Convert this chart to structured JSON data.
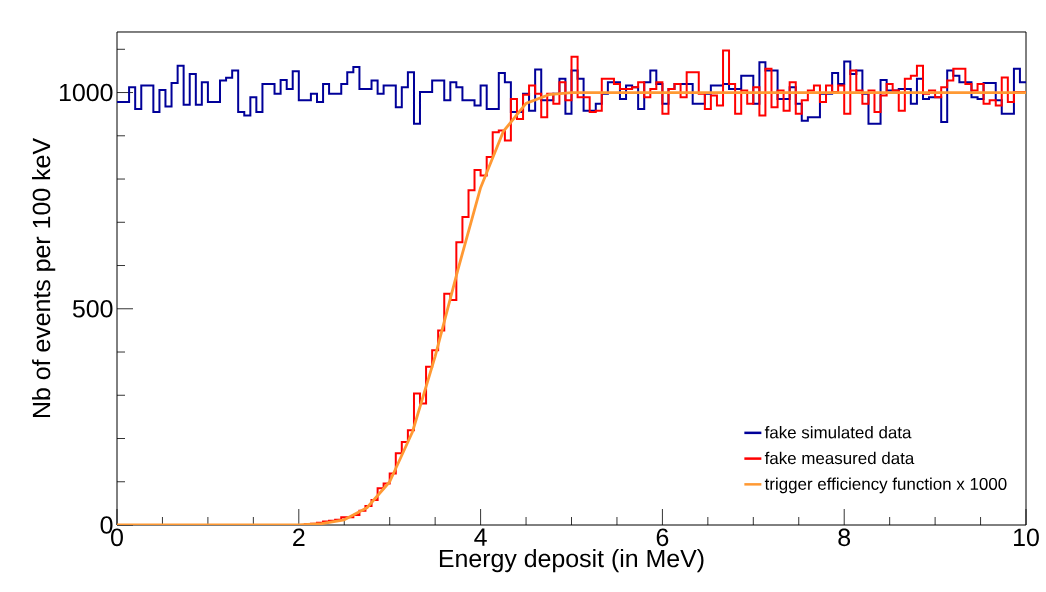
{
  "chart_data": {
    "type": "histogram",
    "xlabel": "Energy deposit (in MeV)",
    "ylabel": "Nb of events per 100 keV",
    "bins": [
      0,
      0.067,
      0.133,
      0.2,
      0.267,
      0.333,
      0.4,
      0.467,
      0.533,
      0.6,
      0.667,
      0.733,
      0.8,
      0.867,
      0.933,
      1,
      1.067,
      1.133,
      1.2,
      1.267,
      1.333,
      1.4,
      1.467,
      1.533,
      1.6,
      1.667,
      1.733,
      1.8,
      1.867,
      1.933,
      2,
      2.067,
      2.133,
      2.2,
      2.267,
      2.333,
      2.4,
      2.467,
      2.533,
      2.6,
      2.667,
      2.733,
      2.8,
      2.867,
      2.933,
      3,
      3.067,
      3.133,
      3.2,
      3.267,
      3.333,
      3.4,
      3.467,
      3.533,
      3.6,
      3.667,
      3.733,
      3.8,
      3.867,
      3.933,
      4,
      4.067,
      4.133,
      4.2,
      4.267,
      4.333,
      4.4,
      4.467,
      4.533,
      4.6,
      4.667,
      4.733,
      4.8,
      4.867,
      4.933,
      5,
      5.067,
      5.133,
      5.2,
      5.267,
      5.333,
      5.4,
      5.467,
      5.533,
      5.6,
      5.667,
      5.733,
      5.8,
      5.867,
      5.933,
      6,
      6.067,
      6.133,
      6.2,
      6.267,
      6.333,
      6.4,
      6.467,
      6.533,
      6.6,
      6.667,
      6.733,
      6.8,
      6.867,
      6.933,
      7,
      7.067,
      7.133,
      7.2,
      7.267,
      7.333,
      7.4,
      7.467,
      7.533,
      7.6,
      7.667,
      7.733,
      7.8,
      7.867,
      7.933,
      8,
      8.067,
      8.133,
      8.2,
      8.267,
      8.333,
      8.4,
      8.467,
      8.533,
      8.6,
      8.667,
      8.733,
      8.8,
      8.867,
      8.933,
      9,
      9.067,
      9.133,
      9.2,
      9.267,
      9.333,
      9.4,
      9.467,
      9.533,
      9.6,
      9.667,
      9.733,
      9.8,
      9.867,
      9.933,
      10
    ],
    "series": [
      {
        "name": "fake simulated data",
        "color": "#000099",
        "values": [
          978,
          978,
          1012,
          962,
          1016,
          1016,
          955,
          1006,
          968,
          1022,
          1062,
          972,
          1043,
          972,
          1024,
          978,
          978,
          1028,
          1034,
          1051,
          955,
          947,
          989,
          955,
          1020,
          1020,
          997,
          1029,
          1008,
          1049,
          982,
          982,
          997,
          978,
          1020,
          997,
          997,
          1020,
          1047,
          1059,
          1008,
          1008,
          1028,
          997,
          1016,
          1016,
          966,
          1012,
          1047,
          928,
          1001,
          1001,
          1028,
          1028,
          982,
          1024,
          1012,
          982,
          982,
          970,
          1016,
          962,
          962,
          1045,
          1024,
          955,
          955,
          997,
          958,
          1053,
          982,
          982,
          997,
          1032,
          951,
          1051,
          1032,
          958,
          958,
          974,
          997,
          1024,
          1024,
          985,
          1016,
          1012,
          962,
          1024,
          1051,
          1020,
          974,
          1008,
          1020,
          1020,
          1020,
          974,
          974,
          997,
          1016,
          1016,
          1020,
          1008,
          1008,
          1039,
          1039,
          974,
          1070,
          1051,
          1051,
          985,
          985,
          1012,
          974,
          935,
          943,
          943,
          997,
          997,
          1045,
          1020,
          1072,
          1043,
          1051,
          997,
          928,
          928,
          1029,
          1005,
          1005,
          1008,
          1008,
          974,
          1032,
          985,
          989,
          989,
          932,
          1051,
          1039,
          1024,
          1024,
          989,
          985,
          1022,
          1022,
          982,
          951,
          951,
          1055,
          1024
        ]
      },
      {
        "name": "fake measured data",
        "color": "#ff0000",
        "values": [
          0,
          0,
          0,
          0,
          0,
          0,
          0,
          0,
          0,
          0,
          0,
          0,
          0,
          0,
          0,
          0,
          0,
          0,
          0,
          0,
          0,
          0,
          0,
          0,
          0,
          0,
          0,
          0,
          0,
          0,
          0,
          2,
          3,
          5,
          8,
          10,
          12,
          18,
          18,
          23,
          33,
          44,
          58,
          85,
          96,
          119,
          166,
          192,
          219,
          304,
          281,
          366,
          404,
          450,
          535,
          520,
          654,
          712,
          774,
          821,
          808,
          851,
          908,
          912,
          889,
          985,
          939,
          995,
          1016,
          997,
          943,
          997,
          974,
          1024,
          982,
          1083,
          989,
          989,
          955,
          958,
          1032,
          1032,
          1020,
          1008,
          1008,
          1012,
          1024,
          989,
          1008,
          1024,
          951,
          1008,
          1020,
          989,
          1047,
          1047,
          997,
          962,
          993,
          970,
          1097,
          1020,
          951,
          1005,
          974,
          1012,
          947,
          1055,
          966,
          1005,
          958,
          1024,
          951,
          982,
          1005,
          1016,
          978,
          1016,
          1001,
          1016,
          951,
          1051,
          1005,
          974,
          1005,
          955,
          993,
          1020,
          1005,
          958,
          1032,
          1039,
          1062,
          997,
          1005,
          989,
          1012,
          1028,
          1055,
          1055,
          1020,
          1005,
          1020,
          974,
          982,
          970,
          1035,
          978,
          1001,
          1001
        ]
      },
      {
        "name": "trigger efficiency function x 1000",
        "type": "line",
        "color": "#ff9933",
        "x": [
          0,
          2,
          2.25,
          2.5,
          2.75,
          3,
          3.25,
          3.5,
          3.75,
          4,
          4.25,
          4.5,
          4.75,
          5,
          10
        ],
        "values": [
          0,
          0,
          3,
          12,
          40,
          100,
          215,
          390,
          590,
          780,
          910,
          975,
          995,
          1000,
          1000
        ]
      }
    ],
    "xlim": [
      0,
      10
    ],
    "ylim": [
      0,
      1140
    ],
    "xticks": [
      0,
      {
        "value": 0.5,
        "label": null
      },
      {
        "value": 1,
        "label": null
      },
      {
        "value": 1.5,
        "label": null
      },
      2,
      {
        "value": 2.5,
        "label": null
      },
      {
        "value": 3,
        "label": null
      },
      {
        "value": 3.5,
        "label": null
      },
      4,
      {
        "value": 4.5,
        "label": null
      },
      {
        "value": 5,
        "label": null
      },
      {
        "value": 5.5,
        "label": null
      },
      6,
      {
        "value": 6.5,
        "label": null
      },
      {
        "value": 7,
        "label": null
      },
      {
        "value": 7.5,
        "label": null
      },
      8,
      {
        "value": 8.5,
        "label": null
      },
      {
        "value": 9,
        "label": null
      },
      {
        "value": 9.5,
        "label": null
      },
      10
    ],
    "yticks": [
      0,
      {
        "value": 100,
        "label": null
      },
      {
        "value": 200,
        "label": null
      },
      {
        "value": 300,
        "label": null
      },
      {
        "value": 400,
        "label": null
      },
      500,
      {
        "value": 600,
        "label": null
      },
      {
        "value": 700,
        "label": null
      },
      {
        "value": 800,
        "label": null
      },
      {
        "value": 900,
        "label": null
      },
      1000,
      {
        "value": 1100,
        "label": null
      }
    ],
    "legend": "bottom right"
  }
}
